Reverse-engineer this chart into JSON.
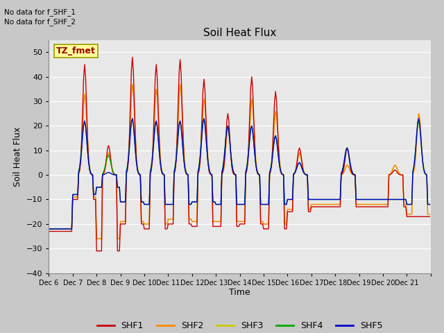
{
  "title": "Soil Heat Flux",
  "ylabel": "Soil Heat Flux",
  "xlabel": "Time",
  "ylim": [
    -40,
    55
  ],
  "yticks": [
    -40,
    -30,
    -20,
    -10,
    0,
    10,
    20,
    30,
    40,
    50
  ],
  "fig_facecolor": "#c8c8c8",
  "plot_facecolor": "#e8e8e8",
  "series_colors": {
    "SHF1": "#cc0000",
    "SHF2": "#ff8800",
    "SHF3": "#cccc00",
    "SHF4": "#00aa00",
    "SHF5": "#0000cc"
  },
  "legend_box_label": "TZ_fmet",
  "legend_box_facecolor": "#ffff99",
  "legend_box_edgecolor": "#999900",
  "top_left_text": [
    "No data for f_SHF_1",
    "No data for f_SHF_2"
  ],
  "x_tick_labels": [
    "Dec 6",
    "Dec 7",
    "Dec 8",
    "Dec 9",
    "Dec 10",
    "Dec 11",
    "Dec 12",
    "Dec 13",
    "Dec 14",
    "Dec 15",
    "Dec 16",
    "Dec 17",
    "Dec 18",
    "Dec 19",
    "Dec 20",
    "Dec 21"
  ],
  "n_days": 16,
  "day_peaks_shf1": [
    0,
    45,
    12,
    48,
    45,
    47,
    39,
    25,
    40,
    34,
    11,
    0,
    11,
    0,
    2,
    0
  ],
  "day_troughs_shf1": [
    -23,
    -10,
    -31,
    -20,
    -22,
    -20,
    -21,
    -21,
    -20,
    -22,
    -15,
    -13,
    -13,
    -13,
    -13,
    -17
  ],
  "day_peaks_shf2": [
    0,
    33,
    9,
    37,
    35,
    37,
    31,
    19,
    31,
    26,
    9,
    0,
    4,
    0,
    4,
    25
  ],
  "day_troughs_shf2": [
    -22,
    -9,
    -26,
    -19,
    -20,
    -18,
    -19,
    -19,
    -19,
    -20,
    -14,
    -12,
    -12,
    -12,
    -12,
    -16
  ],
  "day_peaks_shf3": [
    0,
    33,
    9,
    37,
    35,
    37,
    31,
    19,
    31,
    26,
    9,
    0,
    4,
    0,
    4,
    25
  ],
  "day_troughs_shf3": [
    -22,
    -9,
    -26,
    -19,
    -20,
    -18,
    -19,
    -19,
    -19,
    -20,
    -14,
    -12,
    -12,
    -12,
    -12,
    -16
  ],
  "day_peaks_shf4": [
    0,
    22,
    8,
    23,
    22,
    22,
    23,
    20,
    20,
    16,
    5,
    0,
    11,
    0,
    0,
    22
  ],
  "day_troughs_shf4": [
    -22,
    -8,
    -5,
    -11,
    -12,
    -12,
    -11,
    -12,
    -12,
    -12,
    -10,
    -10,
    -10,
    -10,
    -10,
    -12
  ],
  "day_peaks_shf5": [
    0,
    22,
    1,
    23,
    22,
    22,
    23,
    20,
    20,
    16,
    5,
    0,
    11,
    0,
    0,
    23
  ],
  "day_troughs_shf5": [
    -22,
    -8,
    -5,
    -11,
    -12,
    -12,
    -11,
    -12,
    -12,
    -12,
    -10,
    -10,
    -10,
    -10,
    -10,
    -12
  ]
}
